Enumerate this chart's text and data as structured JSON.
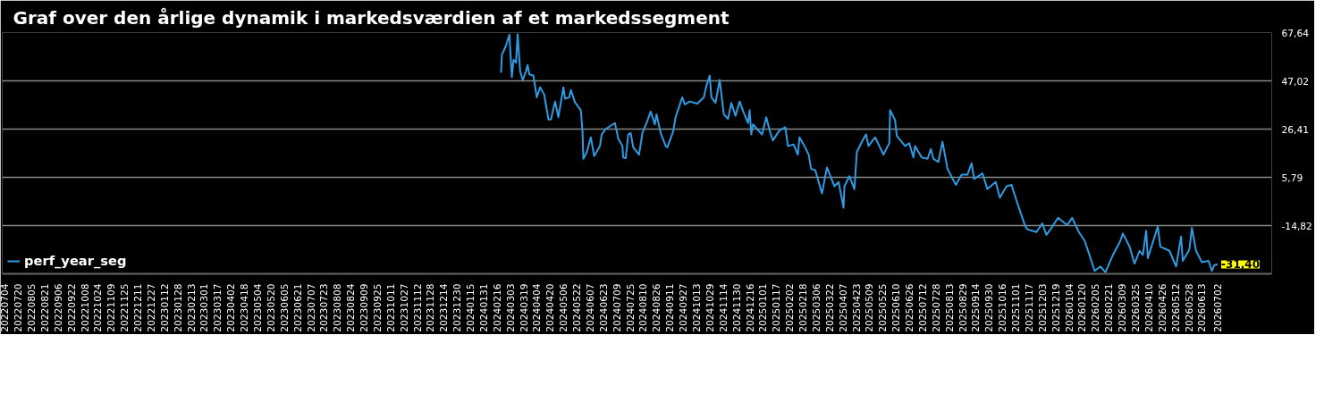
{
  "chart_data": {
    "type": "line",
    "title": "Graf over den årlige dynamik i markedsværdien af et markedssegment",
    "xlim": [
      "2022-07-01",
      "2026-09-05"
    ],
    "ylim": [
      -35.43,
      67.64
    ],
    "yticks": [
      {
        "value": 67.64,
        "label": "67,64"
      },
      {
        "value": 47.02,
        "label": "47,02"
      },
      {
        "value": 26.41,
        "label": "26,41"
      },
      {
        "value": 5.79,
        "label": "5,79"
      },
      {
        "value": -14.82,
        "label": "-14,82"
      }
    ],
    "xticks": [
      {
        "value": "2022-07-04",
        "label": "20220704"
      },
      {
        "value": "2022-07-20",
        "label": "20220720"
      },
      {
        "value": "2022-08-05",
        "label": "20220805"
      },
      {
        "value": "2022-08-21",
        "label": "20220821"
      },
      {
        "value": "2022-09-06",
        "label": "20220906"
      },
      {
        "value": "2022-09-22",
        "label": "20220922"
      },
      {
        "value": "2022-10-08",
        "label": "20221008"
      },
      {
        "value": "2022-10-24",
        "label": "20221024"
      },
      {
        "value": "2022-11-09",
        "label": "20221109"
      },
      {
        "value": "2022-11-25",
        "label": "20221125"
      },
      {
        "value": "2022-12-11",
        "label": "20221211"
      },
      {
        "value": "2022-12-27",
        "label": "20221227"
      },
      {
        "value": "2023-01-12",
        "label": "20230112"
      },
      {
        "value": "2023-01-28",
        "label": "20230128"
      },
      {
        "value": "2023-02-13",
        "label": "20230213"
      },
      {
        "value": "2023-03-01",
        "label": "20230301"
      },
      {
        "value": "2023-03-17",
        "label": "20230317"
      },
      {
        "value": "2023-04-02",
        "label": "20230402"
      },
      {
        "value": "2023-04-18",
        "label": "20230418"
      },
      {
        "value": "2023-05-04",
        "label": "20230504"
      },
      {
        "value": "2023-05-20",
        "label": "20230520"
      },
      {
        "value": "2023-06-05",
        "label": "20230605"
      },
      {
        "value": "2023-06-21",
        "label": "20230621"
      },
      {
        "value": "2023-07-07",
        "label": "20230707"
      },
      {
        "value": "2023-07-23",
        "label": "20230723"
      },
      {
        "value": "2023-08-08",
        "label": "20230808"
      },
      {
        "value": "2023-08-24",
        "label": "20230824"
      },
      {
        "value": "2023-09-09",
        "label": "20230909"
      },
      {
        "value": "2023-09-25",
        "label": "20230925"
      },
      {
        "value": "2023-10-11",
        "label": "20231011"
      },
      {
        "value": "2023-10-27",
        "label": "20231027"
      },
      {
        "value": "2023-11-12",
        "label": "20231112"
      },
      {
        "value": "2023-11-28",
        "label": "20231128"
      },
      {
        "value": "2023-12-14",
        "label": "20231214"
      },
      {
        "value": "2023-12-30",
        "label": "20231230"
      },
      {
        "value": "2024-01-15",
        "label": "20240115"
      },
      {
        "value": "2024-01-31",
        "label": "20240131"
      },
      {
        "value": "2024-02-16",
        "label": "20240216"
      },
      {
        "value": "2024-03-03",
        "label": "20240303"
      },
      {
        "value": "2024-03-19",
        "label": "20240319"
      },
      {
        "value": "2024-04-04",
        "label": "20240404"
      },
      {
        "value": "2024-04-20",
        "label": "20240420"
      },
      {
        "value": "2024-05-06",
        "label": "20240506"
      },
      {
        "value": "2024-05-22",
        "label": "20240522"
      },
      {
        "value": "2024-06-07",
        "label": "20240607"
      },
      {
        "value": "2024-06-23",
        "label": "20240623"
      },
      {
        "value": "2024-07-09",
        "label": "20240709"
      },
      {
        "value": "2024-07-25",
        "label": "20240725"
      },
      {
        "value": "2024-08-10",
        "label": "20240810"
      },
      {
        "value": "2024-08-26",
        "label": "20240826"
      },
      {
        "value": "2024-09-11",
        "label": "20240911"
      },
      {
        "value": "2024-09-27",
        "label": "20240927"
      },
      {
        "value": "2024-10-13",
        "label": "20241013"
      },
      {
        "value": "2024-10-29",
        "label": "20241029"
      },
      {
        "value": "2024-11-14",
        "label": "20241114"
      },
      {
        "value": "2024-11-30",
        "label": "20241130"
      },
      {
        "value": "2024-12-16",
        "label": "20241216"
      },
      {
        "value": "2025-01-01",
        "label": "20250101"
      },
      {
        "value": "2025-01-17",
        "label": "20250117"
      },
      {
        "value": "2025-02-02",
        "label": "20250202"
      },
      {
        "value": "2025-02-18",
        "label": "20250218"
      },
      {
        "value": "2025-03-06",
        "label": "20250306"
      },
      {
        "value": "2025-03-22",
        "label": "20250322"
      },
      {
        "value": "2025-04-07",
        "label": "20250407"
      },
      {
        "value": "2025-04-23",
        "label": "20250423"
      },
      {
        "value": "2025-05-09",
        "label": "20250509"
      },
      {
        "value": "2025-05-25",
        "label": "20250525"
      },
      {
        "value": "2025-06-10",
        "label": "20250610"
      },
      {
        "value": "2025-06-26",
        "label": "20250626"
      },
      {
        "value": "2025-07-12",
        "label": "20250712"
      },
      {
        "value": "2025-07-28",
        "label": "20250728"
      },
      {
        "value": "2025-08-13",
        "label": "20250813"
      },
      {
        "value": "2025-08-29",
        "label": "20250829"
      },
      {
        "value": "2025-09-14",
        "label": "20250914"
      },
      {
        "value": "2025-09-30",
        "label": "20250930"
      },
      {
        "value": "2025-10-16",
        "label": "20251016"
      },
      {
        "value": "2025-11-01",
        "label": "20251101"
      },
      {
        "value": "2025-11-17",
        "label": "20251117"
      },
      {
        "value": "2025-12-03",
        "label": "20251203"
      },
      {
        "value": "2025-12-19",
        "label": "20251219"
      },
      {
        "value": "2026-01-04",
        "label": "20260104"
      },
      {
        "value": "2026-01-20",
        "label": "20260120"
      },
      {
        "value": "2026-02-05",
        "label": "20260205"
      },
      {
        "value": "2026-02-21",
        "label": "20260221"
      },
      {
        "value": "2026-03-09",
        "label": "20260309"
      },
      {
        "value": "2026-03-25",
        "label": "20260325"
      },
      {
        "value": "2026-04-10",
        "label": "20260410"
      },
      {
        "value": "2026-04-26",
        "label": "20260426"
      },
      {
        "value": "2026-05-12",
        "label": "20260512"
      },
      {
        "value": "2026-05-28",
        "label": "20260528"
      },
      {
        "value": "2026-06-13",
        "label": "20260613"
      },
      {
        "value": "2026-07-02",
        "label": "20260702"
      }
    ],
    "grid": "y",
    "legend": "bottom left",
    "annotations": [
      {
        "text": "-31,40",
        "x": "2026-07-02",
        "y": -31.4
      }
    ],
    "series": [
      {
        "name": "perf_year_seg",
        "color": "#2f9be3",
        "x": [
          "2024-02-21",
          "2024-02-22",
          "2024-02-27",
          "2024-03-02",
          "2024-03-05",
          "2024-03-07",
          "2024-03-10",
          "2024-03-12",
          "2024-03-15",
          "2024-03-18",
          "2024-03-22",
          "2024-03-24",
          "2024-03-26",
          "2024-03-31",
          "2024-04-04",
          "2024-04-08",
          "2024-04-13",
          "2024-04-18",
          "2024-04-21",
          "2024-04-26",
          "2024-04-30",
          "2024-05-06",
          "2024-05-08",
          "2024-05-13",
          "2024-05-15",
          "2024-05-20",
          "2024-05-27",
          "2024-05-29",
          "2024-05-30",
          "2024-06-03",
          "2024-06-08",
          "2024-06-12",
          "2024-06-19",
          "2024-06-21",
          "2024-06-26",
          "2024-07-07",
          "2024-07-11",
          "2024-07-16",
          "2024-07-17",
          "2024-07-20",
          "2024-07-23",
          "2024-07-26",
          "2024-07-29",
          "2024-08-05",
          "2024-08-09",
          "2024-08-14",
          "2024-08-19",
          "2024-08-24",
          "2024-08-26",
          "2024-08-31",
          "2024-09-06",
          "2024-09-08",
          "2024-09-15",
          "2024-09-18",
          "2024-09-26",
          "2024-09-29",
          "2024-10-05",
          "2024-10-14",
          "2024-10-22",
          "2024-10-25",
          "2024-10-29",
          "2024-10-31",
          "2024-11-05",
          "2024-11-10",
          "2024-11-15",
          "2024-11-20",
          "2024-11-24",
          "2024-11-29",
          "2024-12-04",
          "2024-12-09",
          "2024-12-14",
          "2024-12-16",
          "2024-12-18",
          "2024-12-20",
          "2024-12-31",
          "2025-01-05",
          "2025-01-10",
          "2025-01-13",
          "2025-01-21",
          "2025-01-28",
          "2025-01-31",
          "2025-02-07",
          "2025-02-12",
          "2025-02-14",
          "2025-02-20",
          "2025-02-25",
          "2025-02-28",
          "2025-03-05",
          "2025-03-13",
          "2025-03-19",
          "2025-03-28",
          "2025-04-02",
          "2025-04-08",
          "2025-04-09",
          "2025-04-15",
          "2025-04-21",
          "2025-04-24",
          "2025-05-02",
          "2025-05-05",
          "2025-05-08",
          "2025-05-16",
          "2025-05-26",
          "2025-06-02",
          "2025-06-03",
          "2025-06-09",
          "2025-06-11",
          "2025-06-21",
          "2025-06-26",
          "2025-07-01",
          "2025-07-03",
          "2025-07-11",
          "2025-07-18",
          "2025-07-22",
          "2025-07-25",
          "2025-07-31",
          "2025-08-05",
          "2025-08-11",
          "2025-08-21",
          "2025-08-28",
          "2025-09-04",
          "2025-09-09",
          "2025-09-12",
          "2025-09-22",
          "2025-09-28",
          "2025-10-08",
          "2025-10-13",
          "2025-10-21",
          "2025-10-27",
          "2025-11-02",
          "2025-11-12",
          "2025-11-15",
          "2025-11-26",
          "2025-12-03",
          "2025-12-08",
          "2025-12-13",
          "2025-12-22",
          "2026-01-02",
          "2026-01-08",
          "2026-01-16",
          "2026-01-23",
          "2026-01-30",
          "2026-02-04",
          "2026-02-11",
          "2026-02-17",
          "2026-02-26",
          "2026-03-07",
          "2026-03-10",
          "2026-03-18",
          "2026-03-24",
          "2026-03-30",
          "2026-04-03",
          "2026-04-07",
          "2026-04-09",
          "2026-04-21",
          "2026-04-24",
          "2026-05-05",
          "2026-05-13",
          "2026-05-19",
          "2026-05-21",
          "2026-05-29",
          "2026-06-01",
          "2026-06-06",
          "2026-06-13",
          "2026-06-21",
          "2026-06-25",
          "2026-06-28",
          "2026-07-02"
        ],
        "values": [
          50.5,
          58.2,
          62.1,
          66.8,
          48.6,
          56.0,
          54.8,
          67.0,
          51.1,
          47.4,
          51.1,
          53.8,
          49.9,
          49.2,
          40.0,
          44.3,
          41.0,
          30.5,
          30.5,
          38.2,
          31.5,
          44.3,
          39.4,
          40.0,
          43.1,
          37.8,
          34.5,
          25.3,
          13.7,
          16.5,
          22.9,
          14.9,
          19.2,
          24.1,
          26.5,
          29.0,
          22.3,
          19.2,
          14.3,
          14.0,
          24.1,
          24.7,
          18.6,
          15.5,
          24.7,
          29.0,
          33.9,
          28.4,
          32.7,
          24.7,
          19.2,
          18.6,
          25.3,
          31.5,
          40.0,
          37.0,
          38.2,
          37.3,
          40.0,
          44.9,
          49.2,
          40.0,
          37.6,
          47.4,
          32.7,
          30.8,
          37.6,
          32.1,
          38.2,
          33.3,
          29.0,
          34.5,
          24.1,
          28.4,
          24.1,
          31.5,
          24.7,
          21.6,
          25.9,
          27.2,
          19.2,
          19.8,
          15.5,
          22.9,
          19.2,
          15.5,
          9.4,
          8.8,
          -1.1,
          10.0,
          2.0,
          3.8,
          -7.2,
          2.0,
          6.3,
          0.8,
          16.7,
          22.3,
          24.1,
          19.2,
          22.9,
          15.5,
          20.4,
          34.5,
          30.2,
          23.5,
          19.2,
          20.4,
          14.3,
          19.2,
          14.3,
          13.7,
          17.9,
          13.7,
          12.4,
          21.0,
          9.4,
          2.6,
          6.9,
          6.9,
          11.8,
          5.1,
          7.5,
          0.8,
          3.8,
          -2.9,
          2.0,
          2.6,
          -4.1,
          -14.6,
          -16.4,
          -17.6,
          -13.9,
          -18.8,
          -16.4,
          -11.5,
          -14.6,
          -11.5,
          -17.6,
          -21.3,
          -28.7,
          -34.2,
          -32.3,
          -34.8,
          -27.4,
          -21.3,
          -18.2,
          -23.8,
          -31.1,
          -25.6,
          -27.4,
          -17.0,
          -28.7,
          -15.2,
          -23.8,
          -25.6,
          -32.3,
          -19.5,
          -29.9,
          -25.0,
          -15.8,
          -25.6,
          -30.5,
          -29.9,
          -34.2,
          -31.7,
          -31.4
        ]
      }
    ]
  }
}
